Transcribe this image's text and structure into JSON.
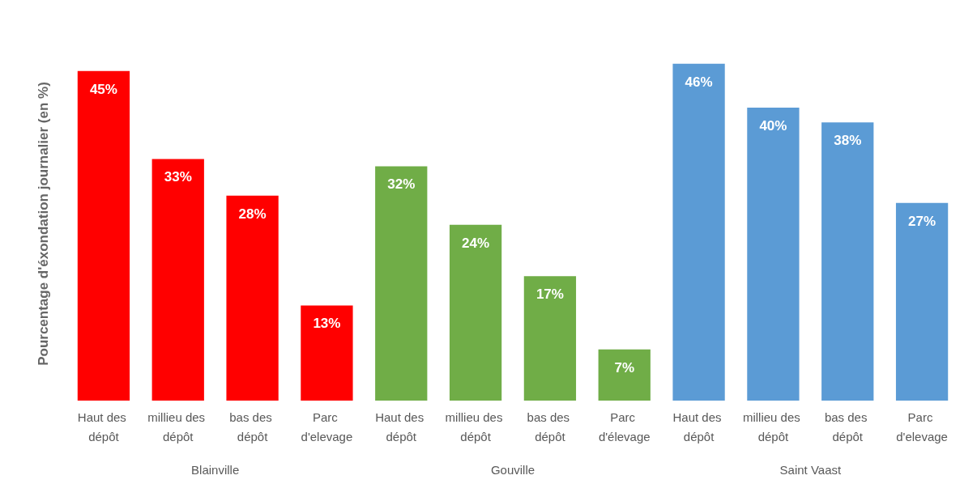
{
  "chart_data": {
    "type": "bar",
    "ylabel": "Pourcentage d'éxondation journalier (en %)",
    "categories": [
      "Haut des dépôt",
      "millieu des dépôt",
      "bas des dépôt",
      "Parc d'elevage",
      "Haut des dépôt",
      "millieu des dépôt",
      "bas des dépôt",
      "Parc d'élevage",
      "Haut des dépôt",
      "millieu des dépôt",
      "bas des dépôt",
      "Parc d'elevage"
    ],
    "values": [
      45,
      33,
      28,
      13,
      32,
      24,
      17,
      7,
      46,
      40,
      38,
      27
    ],
    "value_labels": [
      "45%",
      "33%",
      "28%",
      "13%",
      "32%",
      "24%",
      "17%",
      "7%",
      "46%",
      "40%",
      "38%",
      "27%"
    ],
    "colors": [
      "#ff0000",
      "#ff0000",
      "#ff0000",
      "#ff0000",
      "#70ad47",
      "#70ad47",
      "#70ad47",
      "#70ad47",
      "#5b9bd5",
      "#5b9bd5",
      "#5b9bd5",
      "#5b9bd5"
    ],
    "annotations": [
      "Blainville",
      "Gouville",
      "Saint Vaast"
    ]
  }
}
